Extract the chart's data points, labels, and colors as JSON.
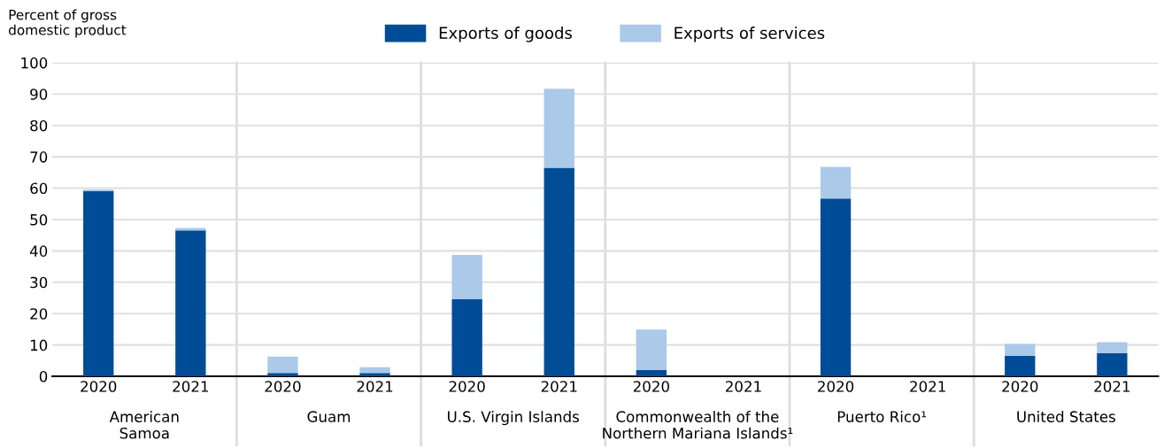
{
  "chart_data": {
    "type": "bar",
    "stacked": true,
    "ylabel": "Percent of gross\ndomestic product",
    "categories": [
      "2020",
      "2021",
      "2020",
      "2021",
      "2020",
      "2021",
      "2020",
      "2021",
      "2020",
      "2021",
      "2020",
      "2021"
    ],
    "annotations": [
      "American\nSamoa",
      "Guam",
      "U.S. Virgin Islands",
      "Commonwealth of the\nNorthern Mariana Islands¹",
      "Puerto Rico¹",
      "United States"
    ],
    "series": [
      {
        "name": "Exports of goods",
        "color": "#004c97",
        "values": [
          59.0,
          46.5,
          1.1,
          1.1,
          24.6,
          66.5,
          2.0,
          null,
          56.7,
          null,
          6.6,
          7.4
        ]
      },
      {
        "name": "Exports of services",
        "color": "#abc9e9",
        "values": [
          0.6,
          0.8,
          5.2,
          1.8,
          14.1,
          25.2,
          12.9,
          null,
          10.1,
          null,
          3.7,
          3.5
        ]
      }
    ],
    "ylim": [
      0,
      100
    ],
    "yticks": [
      0,
      10,
      20,
      30,
      40,
      50,
      60,
      70,
      80,
      90,
      100
    ],
    "grid": "y",
    "legend": "top"
  }
}
